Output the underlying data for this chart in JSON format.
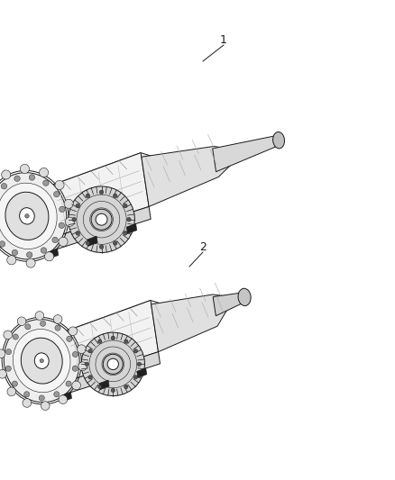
{
  "background_color": "#ffffff",
  "line_color": "#1a1a1a",
  "fill_white": "#ffffff",
  "fill_light": "#f5f5f5",
  "fill_mid": "#e8e8e8",
  "fill_dark": "#d0d0d0",
  "fill_vdark": "#b0b0b0",
  "label1": "1",
  "label2": "2",
  "fig_width": 4.38,
  "fig_height": 5.33,
  "dpi": 100
}
